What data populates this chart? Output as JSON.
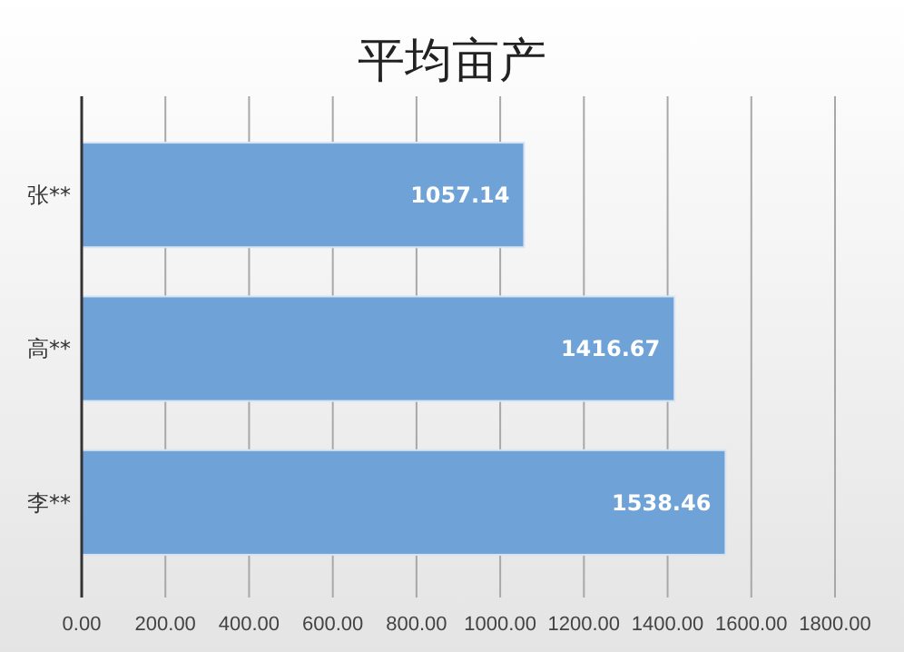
{
  "chart_data": {
    "type": "bar",
    "orientation": "horizontal",
    "title": "平均亩产",
    "categories": [
      "张**",
      "高**",
      "李**"
    ],
    "values": [
      1057.14,
      1416.67,
      1538.46
    ],
    "color": "#6fa3d8",
    "xlim": [
      0,
      1800
    ],
    "xticks": [
      {
        "value": 0,
        "label": "0.00"
      },
      {
        "value": 200,
        "label": "200.00"
      },
      {
        "value": 400,
        "label": "400.00"
      },
      {
        "value": 600,
        "label": "600.00"
      },
      {
        "value": 800,
        "label": "800.00"
      },
      {
        "value": 1000,
        "label": "1000.00"
      },
      {
        "value": 1200,
        "label": "1200.00"
      },
      {
        "value": 1400,
        "label": "1400.00"
      },
      {
        "value": 1600,
        "label": "1600.00"
      },
      {
        "value": 1800,
        "label": "1800.00"
      }
    ],
    "grid": "x",
    "data_labels": true
  }
}
